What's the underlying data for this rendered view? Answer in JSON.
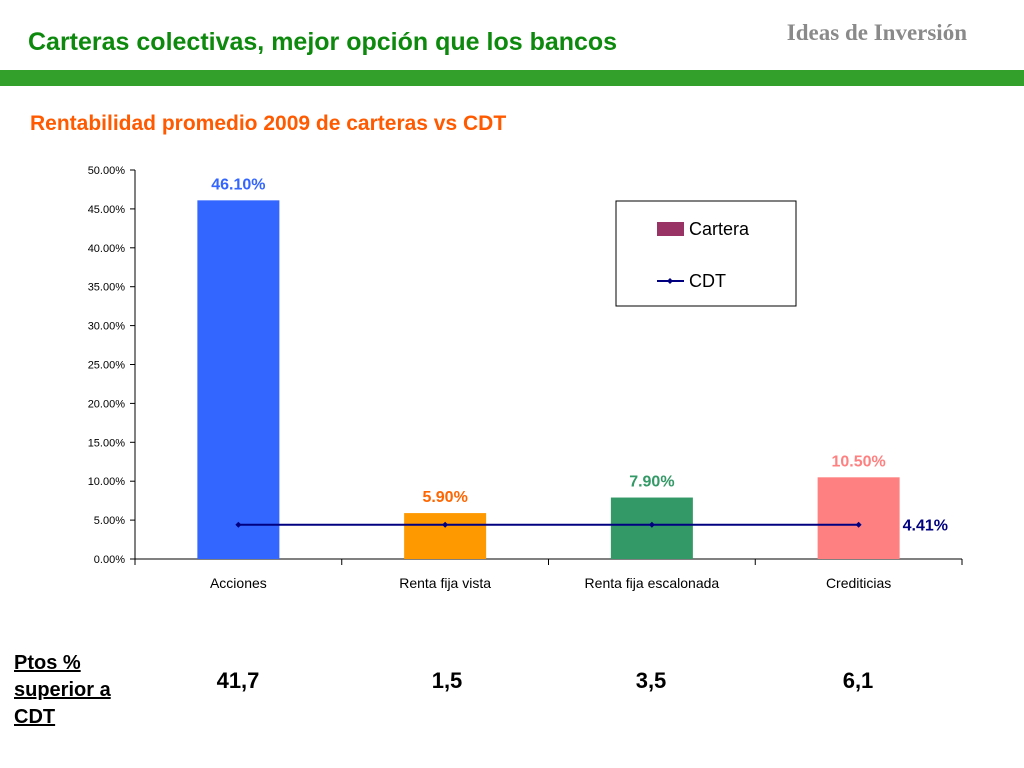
{
  "header": {
    "title": "Carteras colectivas, mejor opción que los bancos",
    "brand": "Ideas de Inversión"
  },
  "subtitle": "Rentabilidad promedio 2009 de carteras vs CDT",
  "colors": {
    "title": "#0d8a0d",
    "band": "#33a02c",
    "subtitle": "#ff5a00",
    "legend_cartera": "#993366",
    "cdt_line": "#000080"
  },
  "chart_data": {
    "type": "bar",
    "categories": [
      "Acciones",
      "Renta fija vista",
      "Renta fija escalonada",
      "Crediticias"
    ],
    "series": [
      {
        "name": "Cartera",
        "values": [
          46.1,
          5.9,
          7.9,
          10.5
        ],
        "labels": [
          "46.10%",
          "5.90%",
          "7.90%",
          "10.50%"
        ],
        "colors": [
          "#3366ff",
          "#ff9900",
          "#339966",
          "#ff8080"
        ],
        "label_colors": [
          "#3366ff",
          "#ff6600",
          "#339966",
          "#ff8080"
        ]
      },
      {
        "name": "CDT",
        "type": "line",
        "values": [
          4.41,
          4.41,
          4.41,
          4.41
        ],
        "end_label": "4.41%"
      }
    ],
    "ylim": [
      0,
      50
    ],
    "yticks": [
      "0.00%",
      "5.00%",
      "10.00%",
      "15.00%",
      "20.00%",
      "25.00%",
      "30.00%",
      "35.00%",
      "40.00%",
      "45.00%",
      "50.00%"
    ],
    "legend_position": "top-right",
    "grid": false
  },
  "table": {
    "header": "Ptos % superior a CDT",
    "values": [
      "41,7",
      "1,5",
      "3,5",
      "6,1"
    ]
  }
}
